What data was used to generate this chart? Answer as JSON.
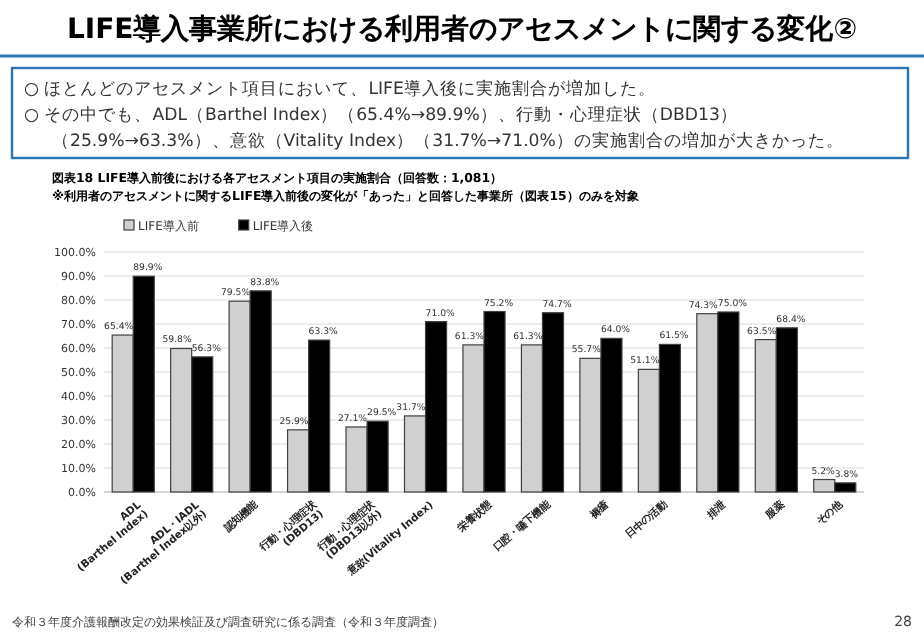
{
  "chart_data": {
    "type": "bar",
    "title": "LIFE導入事業所における利用者のアセスメントに関する変化②",
    "subtitle": "図表18  LIFE導入前後における各アセスメント項目の実施割合（回答数：1,081）",
    "annotations": [
      "○ ほとんどのアセスメント項目において、LIFE導入後に実施割合が増加した。",
      "○ その中でも、ADL（Barthel Index）（65.4%→89.9%）、行動・心理症状（DBD13）",
      "（25.9%→63.3%）、意欲（Vitality Index）（31.7%→71.0%）の実施割合の増加が大きかった。",
      "※利用者のアセスメントに関するLIFE導入前後の変化が「あった」と回答した事業所（図表15）のみを対象",
      "令和３年度介護報酬改定の効果検証及び調査研究に係る調査（令和３年度調査）",
      "28"
    ],
    "categories": [
      "ADL\n(Barthel Index)",
      "ADL・IADL\n(Barthel Index以外)",
      "認知機能",
      "行動・心理症状\n(DBD13)",
      "行動・心理症状\n(DBD13以外)",
      "意欲(Vitality Index)",
      "栄養状態",
      "口腔・嚥下機能",
      "褥瘡",
      "日中の活動",
      "排泄",
      "服薬",
      "その他"
    ],
    "series": [
      {
        "name": "LIFE導入前",
        "color": "#d0d0d0",
        "values": [
          65.4,
          59.8,
          79.5,
          25.9,
          27.1,
          31.7,
          61.3,
          61.3,
          55.7,
          51.1,
          74.3,
          63.5,
          5.2
        ],
        "value_labels": [
          "65.4%",
          "59.8%",
          "79.5%",
          "25.9%",
          "27.1%",
          "31.7%",
          "61.3%",
          "61.3%",
          "55.7%",
          "51.1%",
          "74.3%",
          "63.5%",
          "5.2%"
        ]
      },
      {
        "name": "LIFE導入後",
        "color": "#000000",
        "values": [
          89.9,
          56.3,
          83.8,
          63.3,
          29.5,
          71.0,
          75.2,
          74.7,
          64.0,
          61.5,
          75.0,
          68.4,
          3.8
        ],
        "value_labels": [
          "89.9%",
          "56.3%",
          "83.8%",
          "63.3%",
          "29.5%",
          "71.0%",
          "75.2%",
          "74.7%",
          "64.0%",
          "61.5%",
          "75.0%",
          "68.4%",
          "3.8%"
        ]
      }
    ],
    "ylim": [
      0,
      100
    ],
    "yticks": [
      {
        "value": 0,
        "label": "0.0%"
      },
      {
        "value": 10,
        "label": "10.0%"
      },
      {
        "value": 20,
        "label": "20.0%"
      },
      {
        "value": 30,
        "label": "30.0%"
      },
      {
        "value": 40,
        "label": "40.0%"
      },
      {
        "value": 50,
        "label": "50.0%"
      },
      {
        "value": 60,
        "label": "60.0%"
      },
      {
        "value": 70,
        "label": "70.0%"
      },
      {
        "value": 80,
        "label": "80.0%"
      },
      {
        "value": 90,
        "label": "90.0%"
      },
      {
        "value": 100,
        "label": "100.0%"
      }
    ],
    "grid": "y",
    "legend": "top left"
  }
}
